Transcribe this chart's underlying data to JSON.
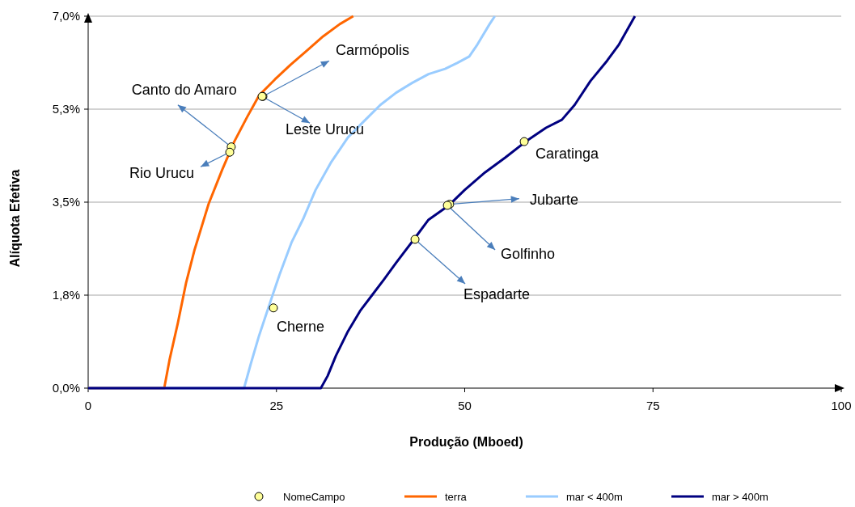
{
  "chart_data": {
    "type": "line",
    "xlabel": "Produção (Mboed)",
    "ylabel": "Alíquota Efetiva",
    "xlim": [
      0,
      100
    ],
    "xticks": [
      0,
      25,
      50,
      75,
      100
    ],
    "ylim": [
      0,
      7.0
    ],
    "yticks": [
      {
        "value": 0,
        "label": "0,0%"
      },
      {
        "value": 1.75,
        "label": "1,8%"
      },
      {
        "value": 3.5,
        "label": "3,5%"
      },
      {
        "value": 5.25,
        "label": "5,3%"
      },
      {
        "value": 7.0,
        "label": "7,0%"
      }
    ],
    "grid": "y",
    "legend": "bottom",
    "series": [
      {
        "name": "NomeCampo",
        "type": "scatter",
        "marker": "circle",
        "color": "#ffff99",
        "x": [
          23.2,
          19.0,
          23.1,
          18.8,
          24.6,
          57.9,
          48.0,
          47.7,
          43.4
        ],
        "values": [
          5.49,
          4.54,
          5.49,
          4.44,
          1.51,
          4.64,
          3.46,
          3.44,
          2.8
        ]
      },
      {
        "name": "terra",
        "color": "#ff6600",
        "x": [
          0,
          10.1,
          10.8,
          11.9,
          13.0,
          14.1,
          16.0,
          17.8,
          19.4,
          21.1,
          22.7,
          24.8,
          26.9,
          29.1,
          31.2,
          33.4,
          35.2
        ],
        "values": [
          0,
          0,
          0.53,
          1.22,
          1.98,
          2.59,
          3.47,
          4.11,
          4.64,
          5.1,
          5.51,
          5.81,
          6.09,
          6.36,
          6.62,
          6.85,
          7.0
        ]
      },
      {
        "name": "mar < 400m",
        "color": "#99ccff",
        "x": [
          0,
          20.7,
          21.6,
          22.7,
          24.3,
          25.4,
          27.0,
          28.6,
          30.2,
          32.3,
          34.5,
          36.6,
          38.8,
          40.9,
          43.1,
          45.2,
          47.4,
          49.0,
          50.6,
          51.7,
          53.3,
          54.0
        ],
        "values": [
          0,
          0,
          0.46,
          0.99,
          1.67,
          2.13,
          2.74,
          3.2,
          3.73,
          4.26,
          4.72,
          5.02,
          5.33,
          5.56,
          5.75,
          5.91,
          6.01,
          6.12,
          6.24,
          6.47,
          6.85,
          7.0
        ]
      },
      {
        "name": "mar > 400m",
        "color": "#000080",
        "x": [
          0,
          30.9,
          31.8,
          32.9,
          34.5,
          36.1,
          37.7,
          39.3,
          40.9,
          43.1,
          45.2,
          47.9,
          50.0,
          52.7,
          55.4,
          58.1,
          60.8,
          62.9,
          64.6,
          66.7,
          68.9,
          70.5,
          72.6
        ],
        "values": [
          0,
          0,
          0.23,
          0.61,
          1.07,
          1.45,
          1.75,
          2.05,
          2.36,
          2.77,
          3.17,
          3.44,
          3.73,
          4.06,
          4.34,
          4.64,
          4.9,
          5.05,
          5.33,
          5.78,
          6.16,
          6.47,
          7.0
        ]
      }
    ],
    "annotations": [
      {
        "text": "Carmópolis",
        "x": 23.2,
        "y": 5.49
      },
      {
        "text": "Canto do Amaro",
        "x": 19.0,
        "y": 4.54
      },
      {
        "text": "Leste Urucu",
        "x": 23.1,
        "y": 5.49
      },
      {
        "text": "Rio Urucu",
        "x": 18.8,
        "y": 4.44
      },
      {
        "text": "Cherne",
        "x": 24.6,
        "y": 1.51
      },
      {
        "text": "Caratinga",
        "x": 57.9,
        "y": 4.64
      },
      {
        "text": "Jubarte",
        "x": 48.0,
        "y": 3.46
      },
      {
        "text": "Golfinho",
        "x": 47.7,
        "y": 3.44
      },
      {
        "text": "Espadarte",
        "x": 43.4,
        "y": 2.8
      }
    ]
  }
}
